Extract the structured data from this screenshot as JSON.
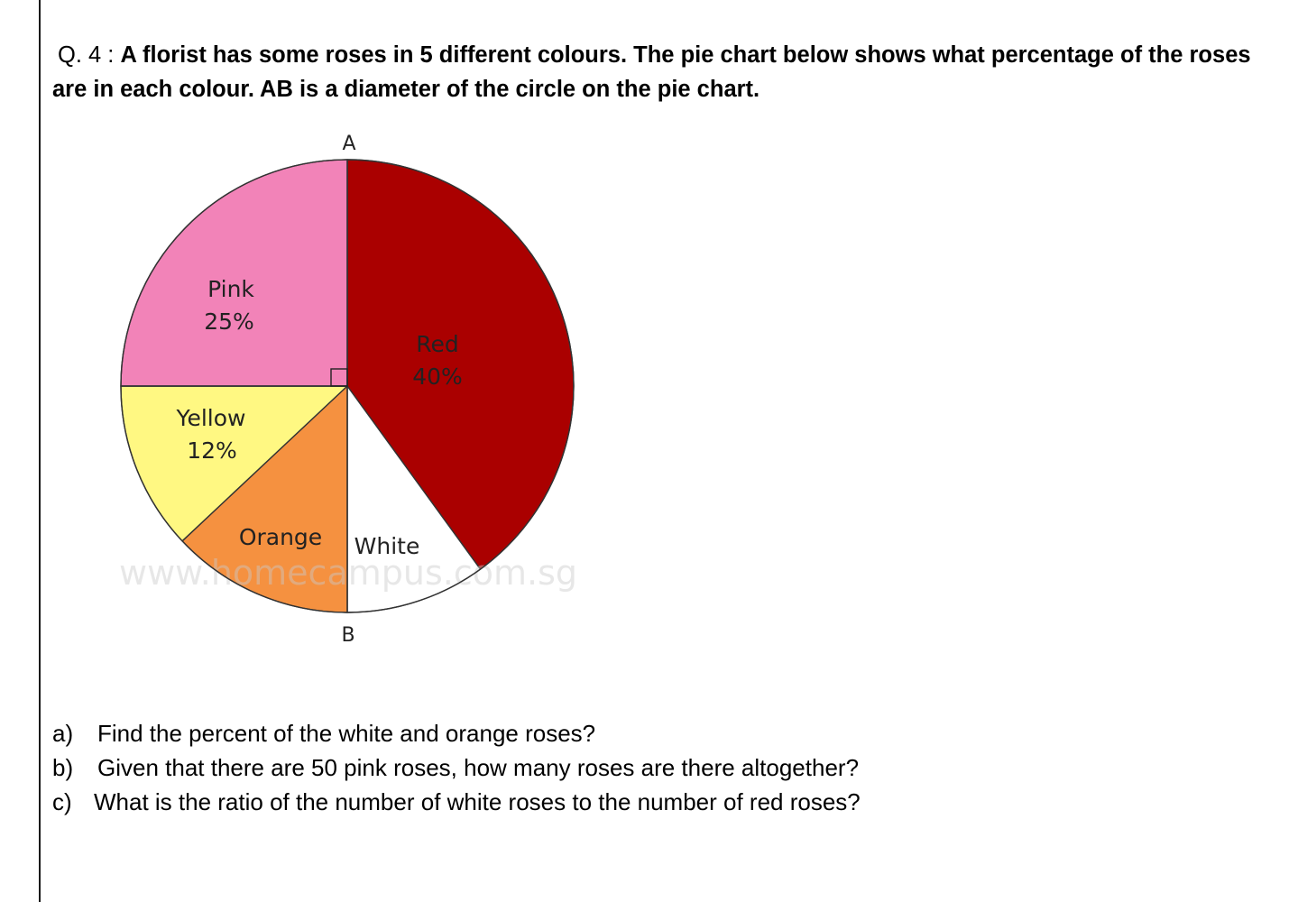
{
  "question": {
    "number": "Q. 4 :",
    "text": "A florist has some roses in 5 different colours. The pie chart below shows what percentage of the roses are in each colour. AB is a diameter of the circle on the pie chart."
  },
  "chart_data": {
    "type": "pie",
    "slices": [
      {
        "name": "Red",
        "label": "40%",
        "value": 40,
        "color": "#AA0000"
      },
      {
        "name": "White",
        "label": "",
        "value": 10,
        "color": "#FFFFFF"
      },
      {
        "name": "Orange",
        "label": "",
        "value": 13,
        "color": "#F59140"
      },
      {
        "name": "Yellow",
        "label": "12%",
        "value": 12,
        "color": "#FFF882"
      },
      {
        "name": "Pink",
        "label": "25%",
        "value": 25,
        "color": "#F283B8"
      }
    ],
    "point_labels": {
      "top": "A",
      "bottom": "B"
    },
    "right_angle_marker": true,
    "watermark": "www.homecampus.com.sg"
  },
  "parts": [
    {
      "marker": "a)",
      "text": "Find the  percent of the white and orange roses?"
    },
    {
      "marker": "b)",
      "text": "Given that there are 50 pink roses, how many roses are there altogether?"
    },
    {
      "marker": "c)",
      "text": "What is the ratio of the number of white roses to the number of red roses?"
    }
  ]
}
